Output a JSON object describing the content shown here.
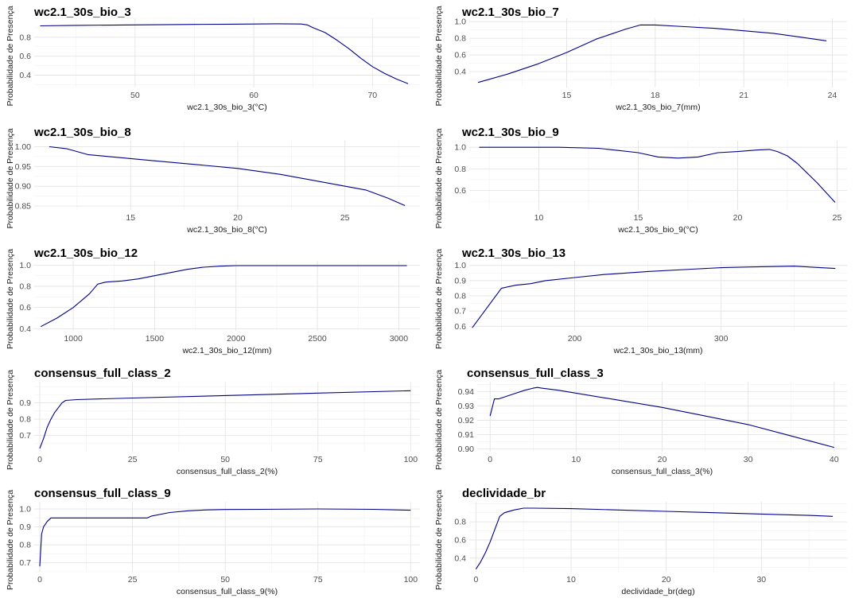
{
  "chart_data": [
    {
      "type": "line",
      "title": "wc2.1_30s_bio_3",
      "xlabel": "wc2.1_30s_bio_3(°C)",
      "ylabel": "Probabilidade de Presença",
      "xlim": [
        41.5,
        74.0
      ],
      "ylim": [
        0.27,
        1.0
      ],
      "xticks": [
        50,
        60,
        70
      ],
      "yticks": [
        0.4,
        0.6,
        0.8
      ],
      "ytick_labels": [
        "0.4",
        "0.6",
        "0.8"
      ],
      "line_color": "#00008b",
      "series": [
        {
          "x": [
            42.0,
            45,
            50,
            55,
            58,
            60,
            62,
            64,
            64.5,
            65,
            66,
            67,
            68,
            69,
            70,
            71,
            72,
            73.0
          ],
          "y": [
            0.92,
            0.925,
            0.93,
            0.935,
            0.938,
            0.94,
            0.942,
            0.94,
            0.93,
            0.9,
            0.85,
            0.77,
            0.68,
            0.58,
            0.49,
            0.42,
            0.36,
            0.31
          ]
        }
      ]
    },
    {
      "type": "line",
      "title": "wc2.1_30s_bio_7",
      "xlabel": "wc2.1_30s_bio_7(mm)",
      "ylabel": "Probabilidade de Presença",
      "xlim": [
        11.7,
        24.5
      ],
      "ylim": [
        0.21,
        1.04
      ],
      "xticks": [
        15,
        18,
        21,
        24
      ],
      "yticks": [
        0.4,
        0.6,
        0.8,
        1.0
      ],
      "ytick_labels": [
        "0.4",
        "0.6",
        "0.8",
        "1.0"
      ],
      "line_color": "#00008b",
      "series": [
        {
          "x": [
            12.0,
            13,
            14,
            15,
            16,
            17,
            17.5,
            18,
            19,
            20,
            21,
            22,
            23,
            23.8
          ],
          "y": [
            0.27,
            0.37,
            0.49,
            0.63,
            0.79,
            0.91,
            0.96,
            0.96,
            0.94,
            0.92,
            0.89,
            0.86,
            0.81,
            0.77
          ]
        }
      ]
    },
    {
      "type": "line",
      "title": "wc2.1_30s_bio_8",
      "xlabel": "wc2.1_30s_bio_8(°C)",
      "ylabel": "Probabilidade de Presença",
      "xlim": [
        10.5,
        28.5
      ],
      "ylim": [
        0.84,
        1.015
      ],
      "xticks": [
        15,
        20,
        25
      ],
      "yticks": [
        0.85,
        0.9,
        0.95,
        1.0
      ],
      "ytick_labels": [
        "0.85",
        "0.90",
        "0.95",
        "1.00"
      ],
      "line_color": "#00008b",
      "series": [
        {
          "x": [
            11.2,
            12,
            13,
            14,
            15,
            16,
            18,
            20,
            22,
            24,
            26,
            27,
            27.8
          ],
          "y": [
            1.0,
            0.995,
            0.98,
            0.975,
            0.97,
            0.965,
            0.955,
            0.945,
            0.93,
            0.91,
            0.89,
            0.87,
            0.851
          ]
        }
      ]
    },
    {
      "type": "line",
      "title": "wc2.1_30s_bio_9",
      "xlabel": "wc2.1_30s_bio_9(°C)",
      "ylabel": "Probabilidade de Presença",
      "xlim": [
        6.5,
        25.5
      ],
      "ylim": [
        0.42,
        1.06
      ],
      "xticks": [
        10,
        15,
        20,
        25
      ],
      "yticks": [
        0.6,
        0.8,
        1.0
      ],
      "ytick_labels": [
        "0.6",
        "0.8",
        "1.0"
      ],
      "line_color": "#00008b",
      "series": [
        {
          "x": [
            7.0,
            9,
            11,
            13,
            14,
            15,
            16,
            17,
            18,
            19,
            20,
            21,
            21.6,
            22,
            22.5,
            23,
            23.5,
            24,
            24.5,
            24.9
          ],
          "y": [
            1.0,
            1.0,
            1.0,
            0.99,
            0.97,
            0.95,
            0.91,
            0.9,
            0.91,
            0.95,
            0.96,
            0.975,
            0.98,
            0.96,
            0.92,
            0.85,
            0.76,
            0.67,
            0.57,
            0.49
          ]
        }
      ]
    },
    {
      "type": "line",
      "title": "wc2.1_30s_bio_12",
      "xlabel": "wc2.1_30s_bio_12(mm)",
      "ylabel": "Probabilidade de Presença",
      "xlim": [
        760,
        3130
      ],
      "ylim": [
        0.38,
        1.04
      ],
      "xticks": [
        1000,
        1500,
        2000,
        2500,
        3000
      ],
      "yticks": [
        0.4,
        0.6,
        0.8,
        1.0
      ],
      "ytick_labels": [
        "0.4",
        "0.6",
        "0.8",
        "1.0"
      ],
      "line_color": "#00008b",
      "series": [
        {
          "x": [
            800,
            900,
            1000,
            1100,
            1150,
            1200,
            1300,
            1400,
            1500,
            1600,
            1700,
            1800,
            1900,
            2000,
            2500,
            3050
          ],
          "y": [
            0.42,
            0.5,
            0.6,
            0.73,
            0.82,
            0.84,
            0.85,
            0.87,
            0.9,
            0.93,
            0.96,
            0.98,
            0.99,
            0.995,
            0.995,
            0.995
          ]
        }
      ]
    },
    {
      "type": "line",
      "title": "wc2.1_30s_bio_13",
      "xlabel": "wc2.1_30s_bio_13(mm)",
      "ylabel": "Probabilidade de Presença",
      "xlim": [
        128,
        386
      ],
      "ylim": [
        0.57,
        1.03
      ],
      "xticks": [
        200,
        300
      ],
      "yticks": [
        0.6,
        0.7,
        0.8,
        0.9,
        1.0
      ],
      "ytick_labels": [
        "0.6",
        "0.7",
        "0.8",
        "0.9",
        "1.0"
      ],
      "line_color": "#00008b",
      "series": [
        {
          "x": [
            130,
            140,
            150,
            160,
            170,
            180,
            200,
            220,
            250,
            280,
            300,
            320,
            350,
            378
          ],
          "y": [
            0.59,
            0.72,
            0.85,
            0.87,
            0.88,
            0.9,
            0.92,
            0.94,
            0.96,
            0.975,
            0.985,
            0.99,
            0.995,
            0.98
          ]
        }
      ]
    },
    {
      "type": "line",
      "title": "consensus_full_class_2",
      "xlabel": "consensus_full_class_2(%)",
      "ylabel": "Probabilidade de Presença",
      "xlim": [
        -1.5,
        102.5
      ],
      "ylim": [
        0.6,
        1.03
      ],
      "xticks": [
        0,
        25,
        50,
        75,
        100
      ],
      "yticks": [
        0.7,
        0.8,
        0.9
      ],
      "ytick_labels": [
        "0.7",
        "0.8",
        "0.9"
      ],
      "line_color": "#00008b",
      "series": [
        {
          "x": [
            0,
            1,
            2,
            3,
            4,
            5,
            6,
            7,
            10,
            25,
            50,
            75,
            100
          ],
          "y": [
            0.62,
            0.68,
            0.75,
            0.8,
            0.84,
            0.87,
            0.9,
            0.915,
            0.92,
            0.93,
            0.945,
            0.96,
            0.975
          ]
        }
      ]
    },
    {
      "type": "line",
      "title": "consensus_full_class_3",
      "xlabel": "consensus_full_class_3(%)",
      "ylabel": "Probabilidade de Presença",
      "xlim": [
        -1.5,
        41.5
      ],
      "ylim": [
        0.898,
        0.947
      ],
      "xticks": [
        0,
        10,
        20,
        30,
        40
      ],
      "yticks": [
        0.9,
        0.91,
        0.92,
        0.93,
        0.94
      ],
      "ytick_labels": [
        "0.90",
        "0.91",
        "0.92",
        "0.93",
        "0.94"
      ],
      "line_color": "#00008b",
      "series": [
        {
          "x": [
            0,
            0.5,
            1,
            2,
            3,
            4,
            5,
            5.5,
            6,
            8,
            10,
            15,
            20,
            25,
            30,
            35,
            40
          ],
          "y": [
            0.923,
            0.935,
            0.935,
            0.937,
            0.939,
            0.941,
            0.9425,
            0.943,
            0.9425,
            0.941,
            0.939,
            0.934,
            0.929,
            0.923,
            0.917,
            0.909,
            0.901
          ]
        }
      ]
    },
    {
      "type": "line",
      "title": "consensus_full_class_9",
      "xlabel": "consensus_full_class_9(%)",
      "ylabel": "Probabilidade de Presença",
      "xlim": [
        -1.5,
        102.5
      ],
      "ylim": [
        0.65,
        1.04
      ],
      "xticks": [
        0,
        25,
        50,
        75,
        100
      ],
      "yticks": [
        0.7,
        0.8,
        0.9,
        1.0
      ],
      "ytick_labels": [
        "0.7",
        "0.8",
        "0.9",
        "1.0"
      ],
      "line_color": "#00008b",
      "series": [
        {
          "x": [
            0,
            0.5,
            1,
            2,
            3,
            10,
            20,
            29,
            30,
            35,
            40,
            45,
            50,
            60,
            75,
            90,
            100
          ],
          "y": [
            0.68,
            0.86,
            0.9,
            0.93,
            0.95,
            0.95,
            0.95,
            0.95,
            0.96,
            0.98,
            0.99,
            0.995,
            0.997,
            0.998,
            1.0,
            0.998,
            0.993
          ]
        }
      ]
    },
    {
      "type": "line",
      "title": "declividade_br",
      "xlabel": "declividade_br(deg)",
      "ylabel": "Probabilidade de Presença",
      "xlim": [
        -0.7,
        39.0
      ],
      "ylim": [
        0.25,
        1.02
      ],
      "xticks": [
        0,
        10,
        20,
        30
      ],
      "yticks": [
        0.4,
        0.6,
        0.8
      ],
      "ytick_labels": [
        "0.4",
        "0.6",
        "0.8"
      ],
      "line_color": "#00008b",
      "series": [
        {
          "x": [
            0,
            0.5,
            1,
            1.5,
            2,
            2.5,
            3,
            4,
            5,
            6,
            10,
            15,
            20,
            25,
            30,
            35,
            37.5
          ],
          "y": [
            0.28,
            0.36,
            0.46,
            0.58,
            0.72,
            0.86,
            0.9,
            0.93,
            0.95,
            0.95,
            0.945,
            0.93,
            0.915,
            0.9,
            0.885,
            0.87,
            0.86
          ]
        }
      ]
    }
  ]
}
